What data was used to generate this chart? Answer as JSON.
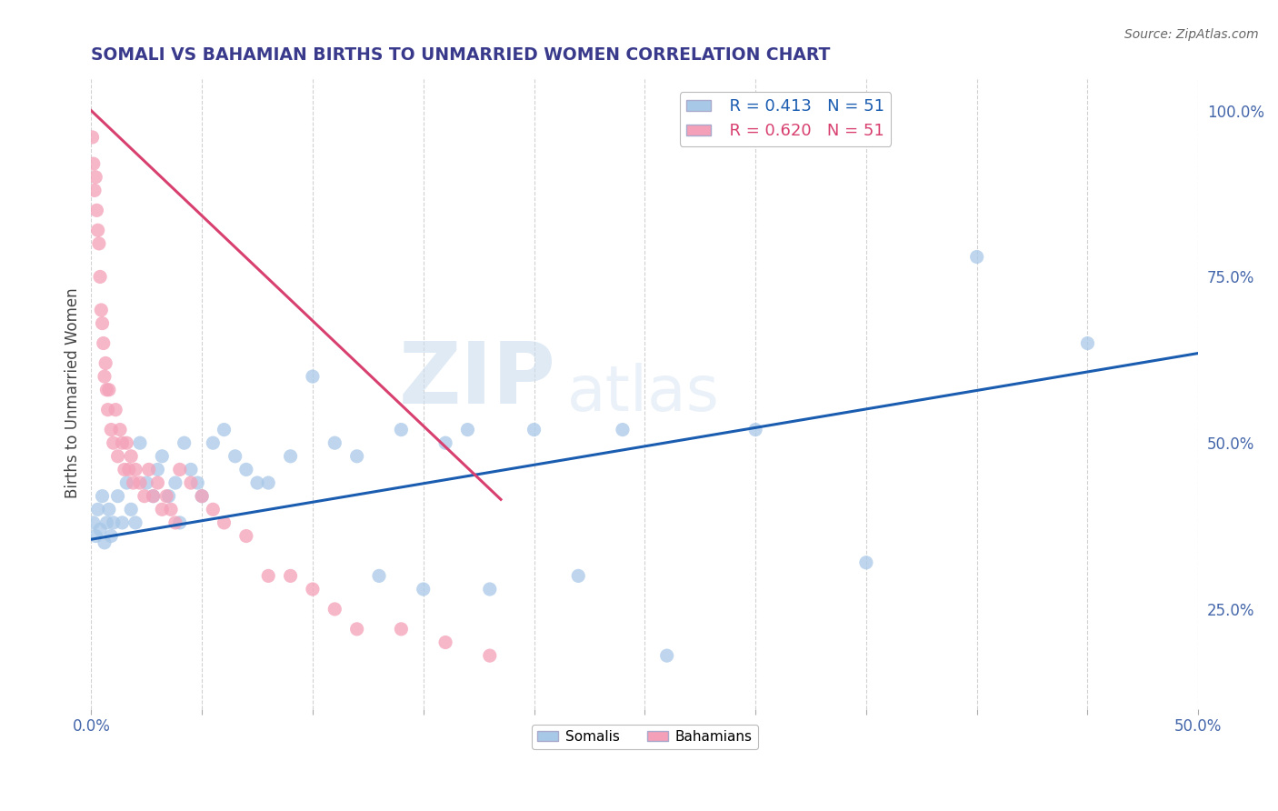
{
  "title": "SOMALI VS BAHAMIAN BIRTHS TO UNMARRIED WOMEN CORRELATION CHART",
  "source": "Source: ZipAtlas.com",
  "ylabel": "Births to Unmarried Women",
  "xlim": [
    0.0,
    0.5
  ],
  "ylim": [
    0.1,
    1.05
  ],
  "xticks": [
    0.0,
    0.05,
    0.1,
    0.15,
    0.2,
    0.25,
    0.3,
    0.35,
    0.4,
    0.45,
    0.5
  ],
  "yticks_right": [
    1.0,
    0.75,
    0.5,
    0.25
  ],
  "yticklabels_right": [
    "100.0%",
    "75.0%",
    "50.0%",
    "25.0%"
  ],
  "somali_color": "#a8c8e8",
  "bahamian_color": "#f4a0b8",
  "somali_line_color": "#1a5cb0",
  "bahamian_line_color": "#d84070",
  "R_somali": 0.413,
  "N_somali": 51,
  "R_bahamian": 0.62,
  "N_bahamian": 51,
  "watermark_zip": "ZIP",
  "watermark_atlas": "atlas",
  "title_color": "#3a3a8c",
  "source_color": "#666666",
  "axis_label_color": "#444444",
  "tick_color": "#4466aa",
  "grid_color": "#cccccc",
  "somali_x": [
    0.001,
    0.002,
    0.003,
    0.004,
    0.005,
    0.006,
    0.007,
    0.008,
    0.009,
    0.01,
    0.012,
    0.014,
    0.016,
    0.018,
    0.02,
    0.022,
    0.025,
    0.028,
    0.03,
    0.032,
    0.035,
    0.038,
    0.04,
    0.042,
    0.045,
    0.048,
    0.05,
    0.055,
    0.06,
    0.065,
    0.07,
    0.075,
    0.08,
    0.09,
    0.1,
    0.11,
    0.12,
    0.13,
    0.14,
    0.15,
    0.16,
    0.17,
    0.18,
    0.2,
    0.22,
    0.24,
    0.26,
    0.3,
    0.35,
    0.4,
    0.45
  ],
  "somali_y": [
    0.38,
    0.36,
    0.4,
    0.37,
    0.42,
    0.35,
    0.38,
    0.4,
    0.36,
    0.38,
    0.42,
    0.38,
    0.44,
    0.4,
    0.38,
    0.5,
    0.44,
    0.42,
    0.46,
    0.48,
    0.42,
    0.44,
    0.38,
    0.5,
    0.46,
    0.44,
    0.42,
    0.5,
    0.52,
    0.48,
    0.46,
    0.44,
    0.44,
    0.48,
    0.6,
    0.5,
    0.48,
    0.3,
    0.52,
    0.28,
    0.5,
    0.52,
    0.28,
    0.52,
    0.3,
    0.52,
    0.18,
    0.52,
    0.32,
    0.78,
    0.65
  ],
  "bahamian_x": [
    0.0005,
    0.001,
    0.0015,
    0.002,
    0.0025,
    0.003,
    0.0035,
    0.004,
    0.0045,
    0.005,
    0.0055,
    0.006,
    0.0065,
    0.007,
    0.0075,
    0.008,
    0.009,
    0.01,
    0.011,
    0.012,
    0.013,
    0.014,
    0.015,
    0.016,
    0.017,
    0.018,
    0.019,
    0.02,
    0.022,
    0.024,
    0.026,
    0.028,
    0.03,
    0.032,
    0.034,
    0.036,
    0.038,
    0.04,
    0.045,
    0.05,
    0.055,
    0.06,
    0.07,
    0.08,
    0.09,
    0.1,
    0.11,
    0.12,
    0.14,
    0.16,
    0.18
  ],
  "bahamian_y": [
    0.96,
    0.92,
    0.88,
    0.9,
    0.85,
    0.82,
    0.8,
    0.75,
    0.7,
    0.68,
    0.65,
    0.6,
    0.62,
    0.58,
    0.55,
    0.58,
    0.52,
    0.5,
    0.55,
    0.48,
    0.52,
    0.5,
    0.46,
    0.5,
    0.46,
    0.48,
    0.44,
    0.46,
    0.44,
    0.42,
    0.46,
    0.42,
    0.44,
    0.4,
    0.42,
    0.4,
    0.38,
    0.46,
    0.44,
    0.42,
    0.4,
    0.38,
    0.36,
    0.3,
    0.3,
    0.28,
    0.25,
    0.22,
    0.22,
    0.2,
    0.18
  ],
  "somali_trendline_x": [
    0.0,
    0.5
  ],
  "somali_trendline_y": [
    0.355,
    0.635
  ],
  "bahamian_trendline_x": [
    0.0,
    0.185
  ],
  "bahamian_trendline_y": [
    1.0,
    0.415
  ]
}
